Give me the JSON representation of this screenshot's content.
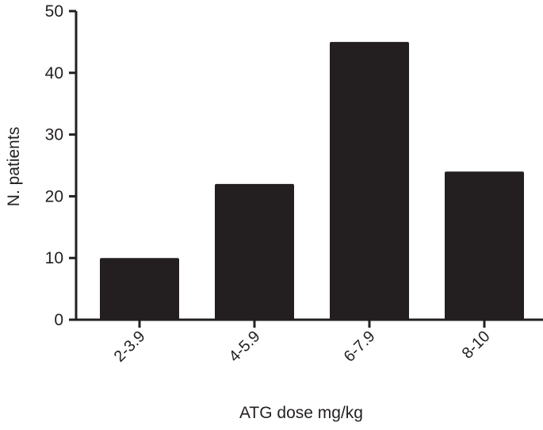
{
  "chart_data": {
    "type": "bar",
    "title": "",
    "xlabel": "ATG dose mg/kg",
    "ylabel": "N. patients",
    "categories": [
      "2-3.9",
      "4-5.9",
      "6-7.9",
      "8-10"
    ],
    "values": [
      10,
      22,
      45,
      24
    ],
    "ylim": [
      0,
      50
    ],
    "yticks": [
      0,
      10,
      20,
      30,
      40,
      50
    ],
    "grid": false,
    "bar_color": "#231f20"
  }
}
